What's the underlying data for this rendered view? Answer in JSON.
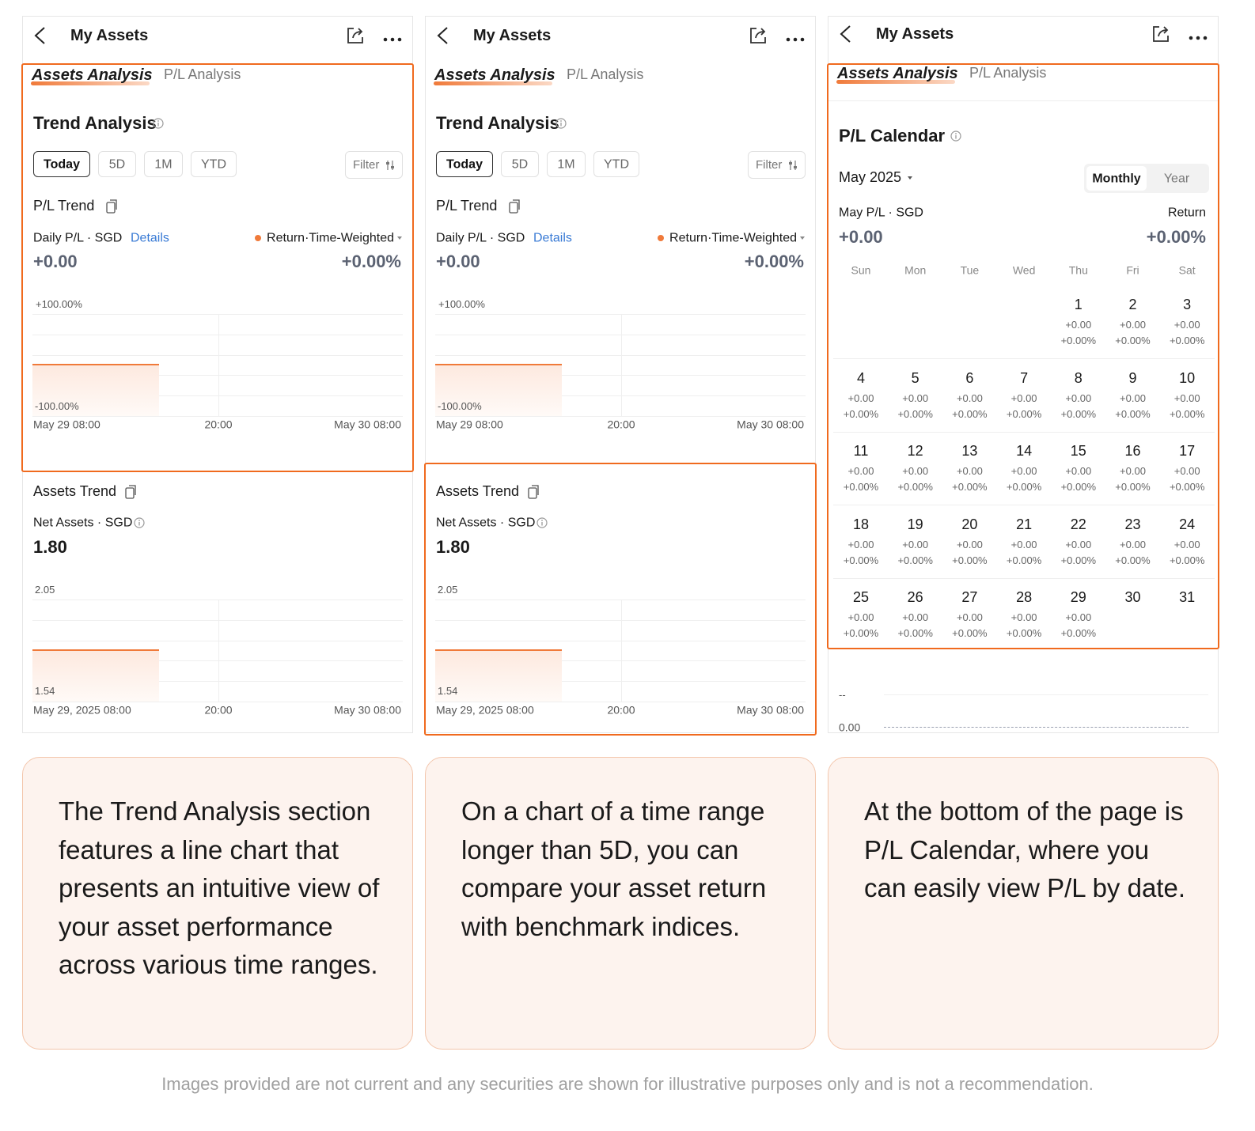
{
  "panels": [
    {
      "header": {
        "title": "My Assets"
      },
      "tabs": [
        "Assets Analysis",
        "P/L Analysis"
      ],
      "trend": {
        "title": "Trend Analysis",
        "ranges": [
          "Today",
          "5D",
          "1M",
          "YTD"
        ],
        "filter": "Filter",
        "pl": {
          "title": "P/L Trend",
          "label": "Daily P/L · SGD",
          "link": "Details",
          "legend": "Return·Time-Weighted",
          "value": "+0.00",
          "return": "+0.00%",
          "axis_top": "+100.00%",
          "axis_bottom": "-100.00%",
          "x_labels": [
            "May 29 08:00",
            "20:00",
            "May 30 08:00"
          ]
        },
        "assets": {
          "title": "Assets Trend",
          "label": "Net Assets · SGD",
          "value": "1.80",
          "axis_top": "2.05",
          "axis_bottom": "1.54",
          "x_labels": [
            "May 29, 2025 08:00",
            "20:00",
            "May 30 08:00"
          ]
        }
      }
    },
    {
      "header": {
        "title": "My Assets"
      },
      "tabs": [
        "Assets Analysis",
        "P/L Analysis"
      ],
      "trend": {
        "title": "Trend Analysis",
        "ranges": [
          "Today",
          "5D",
          "1M",
          "YTD"
        ],
        "filter": "Filter",
        "pl": {
          "title": "P/L Trend",
          "label": "Daily P/L · SGD",
          "link": "Details",
          "legend": "Return·Time-Weighted",
          "value": "+0.00",
          "return": "+0.00%",
          "axis_top": "+100.00%",
          "axis_bottom": "-100.00%",
          "x_labels": [
            "May 29 08:00",
            "20:00",
            "May 30 08:00"
          ]
        },
        "assets": {
          "title": "Assets Trend",
          "label": "Net Assets · SGD",
          "value": "1.80",
          "axis_top": "2.05",
          "axis_bottom": "1.54",
          "x_labels": [
            "May 29, 2025 08:00",
            "20:00",
            "May 30 08:00"
          ]
        }
      }
    },
    {
      "header": {
        "title": "My Assets"
      },
      "tabs": [
        "Assets Analysis",
        "P/L Analysis"
      ],
      "calendar": {
        "title": "P/L Calendar",
        "month": "May 2025",
        "modes": [
          "Monthly",
          "Year"
        ],
        "label": "May P/L · SGD",
        "return_label": "Return",
        "value": "+0.00",
        "return": "+0.00%",
        "weekdays": [
          "Sun",
          "Mon",
          "Tue",
          "Wed",
          "Thu",
          "Fri",
          "Sat"
        ],
        "days": [
          {
            "day": "1",
            "pl": "+0.00",
            "ret": "+0.00%"
          },
          {
            "day": "2",
            "pl": "+0.00",
            "ret": "+0.00%"
          },
          {
            "day": "3",
            "pl": "+0.00",
            "ret": "+0.00%"
          },
          {
            "day": "4",
            "pl": "+0.00",
            "ret": "+0.00%"
          },
          {
            "day": "5",
            "pl": "+0.00",
            "ret": "+0.00%"
          },
          {
            "day": "6",
            "pl": "+0.00",
            "ret": "+0.00%"
          },
          {
            "day": "7",
            "pl": "+0.00",
            "ret": "+0.00%"
          },
          {
            "day": "8",
            "pl": "+0.00",
            "ret": "+0.00%"
          },
          {
            "day": "9",
            "pl": "+0.00",
            "ret": "+0.00%"
          },
          {
            "day": "10",
            "pl": "+0.00",
            "ret": "+0.00%"
          },
          {
            "day": "11",
            "pl": "+0.00",
            "ret": "+0.00%"
          },
          {
            "day": "12",
            "pl": "+0.00",
            "ret": "+0.00%"
          },
          {
            "day": "13",
            "pl": "+0.00",
            "ret": "+0.00%"
          },
          {
            "day": "14",
            "pl": "+0.00",
            "ret": "+0.00%"
          },
          {
            "day": "15",
            "pl": "+0.00",
            "ret": "+0.00%"
          },
          {
            "day": "16",
            "pl": "+0.00",
            "ret": "+0.00%"
          },
          {
            "day": "17",
            "pl": "+0.00",
            "ret": "+0.00%"
          },
          {
            "day": "18",
            "pl": "+0.00",
            "ret": "+0.00%"
          },
          {
            "day": "19",
            "pl": "+0.00",
            "ret": "+0.00%"
          },
          {
            "day": "20",
            "pl": "+0.00",
            "ret": "+0.00%"
          },
          {
            "day": "21",
            "pl": "+0.00",
            "ret": "+0.00%"
          },
          {
            "day": "22",
            "pl": "+0.00",
            "ret": "+0.00%"
          },
          {
            "day": "23",
            "pl": "+0.00",
            "ret": "+0.00%"
          },
          {
            "day": "24",
            "pl": "+0.00",
            "ret": "+0.00%"
          },
          {
            "day": "25",
            "pl": "+0.00",
            "ret": "+0.00%"
          },
          {
            "day": "26",
            "pl": "+0.00",
            "ret": "+0.00%"
          },
          {
            "day": "27",
            "pl": "+0.00",
            "ret": "+0.00%"
          },
          {
            "day": "28",
            "pl": "+0.00",
            "ret": "+0.00%"
          },
          {
            "day": "29",
            "pl": "+0.00",
            "ret": "+0.00%"
          },
          {
            "day": "30"
          },
          {
            "day": "31"
          }
        ]
      },
      "bottom_axis": [
        "--",
        "0.00"
      ]
    }
  ],
  "captions": [
    "The Trend Analysis section features a line chart that presents an intuitive view of your asset performance across various time ranges.",
    "On a chart of a time range longer than 5D, you can compare your asset return with benchmark indices.",
    "At the bottom of the page is P/L Calendar, where you can easily view P/L by date."
  ],
  "disclaimer": "Images provided are not current and any securities are shown for illustrative purposes only and is not a recommendation."
}
